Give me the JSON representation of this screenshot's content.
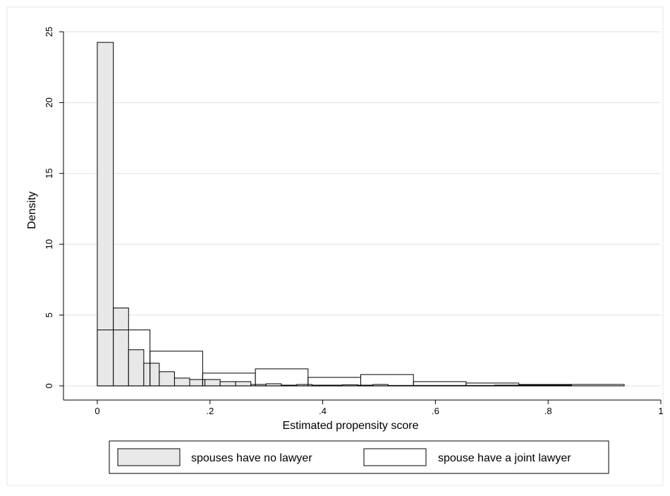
{
  "chart_data": {
    "type": "bar",
    "title": "",
    "xlabel": "Estimated propensity score",
    "ylabel": "Density",
    "xlim": [
      -0.06,
      1.0
    ],
    "ylim": [
      -1,
      25.5
    ],
    "grid": true,
    "legend_position": "bottom",
    "x_ticks": [
      {
        "value": 0,
        "label": "0"
      },
      {
        "value": 0.2,
        "label": ".2"
      },
      {
        "value": 0.4,
        "label": ".4"
      },
      {
        "value": 0.6,
        "label": ".6"
      },
      {
        "value": 0.8,
        "label": ".8"
      },
      {
        "value": 1.0,
        "label": "1"
      }
    ],
    "y_ticks": [
      {
        "value": 0,
        "label": "0"
      },
      {
        "value": 5,
        "label": "5"
      },
      {
        "value": 10,
        "label": "10"
      },
      {
        "value": 15,
        "label": "15"
      },
      {
        "value": 20,
        "label": "20"
      },
      {
        "value": 25,
        "label": "25"
      }
    ],
    "series": [
      {
        "name": "spouses have no lawyer",
        "fill": "#e8e8e8",
        "stroke": "#000000",
        "bins": [
          {
            "x0": 0.0,
            "x1": 0.0285,
            "y": 24.25
          },
          {
            "x0": 0.0285,
            "x1": 0.0555,
            "y": 5.5
          },
          {
            "x0": 0.0555,
            "x1": 0.0825,
            "y": 2.55
          },
          {
            "x0": 0.0825,
            "x1": 0.11,
            "y": 1.6
          },
          {
            "x0": 0.11,
            "x1": 0.137,
            "y": 1.0
          },
          {
            "x0": 0.137,
            "x1": 0.164,
            "y": 0.55
          },
          {
            "x0": 0.164,
            "x1": 0.191,
            "y": 0.45
          },
          {
            "x0": 0.191,
            "x1": 0.218,
            "y": 0.45
          },
          {
            "x0": 0.218,
            "x1": 0.2455,
            "y": 0.3
          },
          {
            "x0": 0.2455,
            "x1": 0.2725,
            "y": 0.3
          },
          {
            "x0": 0.2725,
            "x1": 0.2995,
            "y": 0.1
          },
          {
            "x0": 0.2995,
            "x1": 0.3265,
            "y": 0.15
          },
          {
            "x0": 0.3265,
            "x1": 0.354,
            "y": 0.05
          },
          {
            "x0": 0.354,
            "x1": 0.381,
            "y": 0.1
          },
          {
            "x0": 0.381,
            "x1": 0.408,
            "y": 0.05
          },
          {
            "x0": 0.408,
            "x1": 0.435,
            "y": 0.05
          },
          {
            "x0": 0.435,
            "x1": 0.462,
            "y": 0.08
          },
          {
            "x0": 0.462,
            "x1": 0.489,
            "y": 0.05
          },
          {
            "x0": 0.489,
            "x1": 0.516,
            "y": 0.1
          },
          {
            "x0": 0.516,
            "x1": 0.543,
            "y": 0.03
          },
          {
            "x0": 0.543,
            "x1": 0.57,
            "y": 0.03
          },
          {
            "x0": 0.57,
            "x1": 0.651,
            "y": 0.03
          },
          {
            "x0": 0.651,
            "x1": 0.705,
            "y": 0.03
          },
          {
            "x0": 0.705,
            "x1": 0.84,
            "y": 0.05
          }
        ]
      },
      {
        "name": "spouse have a joint lawyer",
        "fill": "none",
        "stroke": "#000000",
        "bins": [
          {
            "x0": 0.0,
            "x1": 0.0935,
            "y": 3.95
          },
          {
            "x0": 0.0935,
            "x1": 0.187,
            "y": 2.45
          },
          {
            "x0": 0.187,
            "x1": 0.2805,
            "y": 0.9
          },
          {
            "x0": 0.2805,
            "x1": 0.374,
            "y": 1.2
          },
          {
            "x0": 0.374,
            "x1": 0.4675,
            "y": 0.6
          },
          {
            "x0": 0.4675,
            "x1": 0.561,
            "y": 0.8
          },
          {
            "x0": 0.561,
            "x1": 0.6545,
            "y": 0.3
          },
          {
            "x0": 0.6545,
            "x1": 0.748,
            "y": 0.2
          },
          {
            "x0": 0.748,
            "x1": 0.8415,
            "y": 0.1
          },
          {
            "x0": 0.8415,
            "x1": 0.935,
            "y": 0.1
          }
        ]
      }
    ]
  }
}
